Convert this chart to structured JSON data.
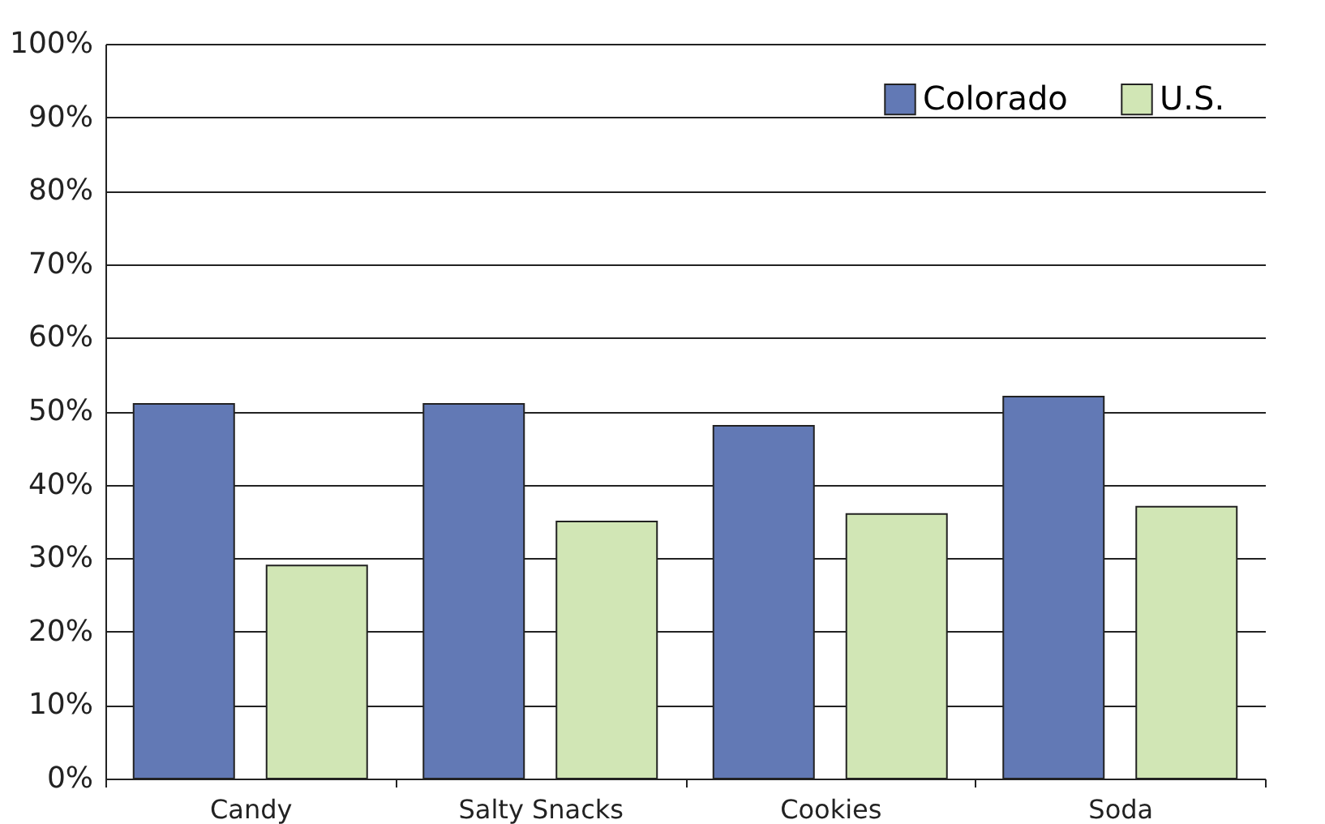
{
  "chart_data": {
    "type": "bar",
    "categories": [
      "Candy",
      "Salty Snacks",
      "Cookies",
      "Soda"
    ],
    "series": [
      {
        "name": "Colorado",
        "color": "#6279b5",
        "values": [
          51,
          51,
          48,
          52
        ]
      },
      {
        "name": "U.S.",
        "color": "#d1e6b5",
        "values": [
          29,
          35,
          36,
          37
        ]
      }
    ],
    "ylim": [
      0,
      100
    ],
    "yticks": [
      {
        "value": 0,
        "label": "0%"
      },
      {
        "value": 10,
        "label": "10%"
      },
      {
        "value": 20,
        "label": "20%"
      },
      {
        "value": 30,
        "label": "30%"
      },
      {
        "value": 40,
        "label": "40%"
      },
      {
        "value": 50,
        "label": "50%"
      },
      {
        "value": 60,
        "label": "60%"
      },
      {
        "value": 70,
        "label": "70%"
      },
      {
        "value": 80,
        "label": "80%"
      },
      {
        "value": 90,
        "label": "90%"
      },
      {
        "value": 100,
        "label": "100%"
      }
    ],
    "grid": "y",
    "legend": "top right"
  }
}
